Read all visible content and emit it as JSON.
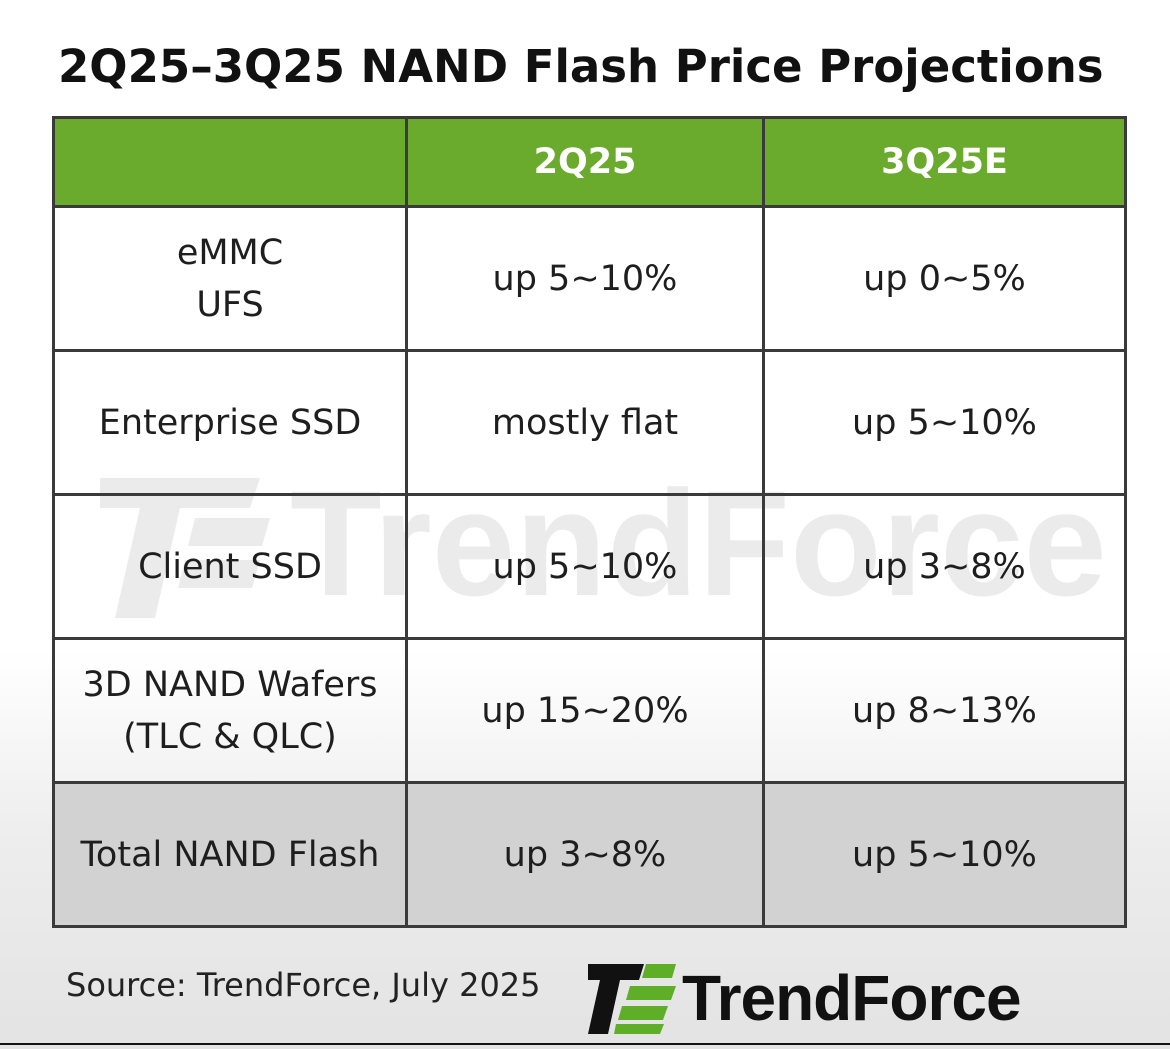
{
  "title": "2Q25–3Q25 NAND Flash Price Projections",
  "table": {
    "header": [
      "",
      "2Q25",
      "3Q25E"
    ],
    "rows": [
      {
        "category": [
          "eMMC",
          "UFS"
        ],
        "q2": "up 5~10%",
        "q3": "up 0~5%"
      },
      {
        "category": [
          "Enterprise SSD"
        ],
        "q2": "mostly flat",
        "q3": "up 5~10%"
      },
      {
        "category": [
          "Client SSD"
        ],
        "q2": "up 5~10%",
        "q3": "up 3~8%"
      },
      {
        "category": [
          "3D NAND Wafers",
          "(TLC & QLC)"
        ],
        "q2": "up 15~20%",
        "q3": "up 8~13%"
      }
    ],
    "total": {
      "category": "Total NAND Flash",
      "q2": "up 3~8%",
      "q3": "up 5~10%"
    }
  },
  "watermark": {
    "text": "TrendForce",
    "icon": "trendforce-logo-icon"
  },
  "footer": {
    "source": "Source: TrendForce, July 2025",
    "logo_text": "TrendForce",
    "logo_icon": "trendforce-logo-icon"
  },
  "colors": {
    "header_green": "#6aaa2c",
    "logo_green": "#5fae28",
    "total_row_gray": "#d2d2d2",
    "border": "#3a3a3a"
  }
}
